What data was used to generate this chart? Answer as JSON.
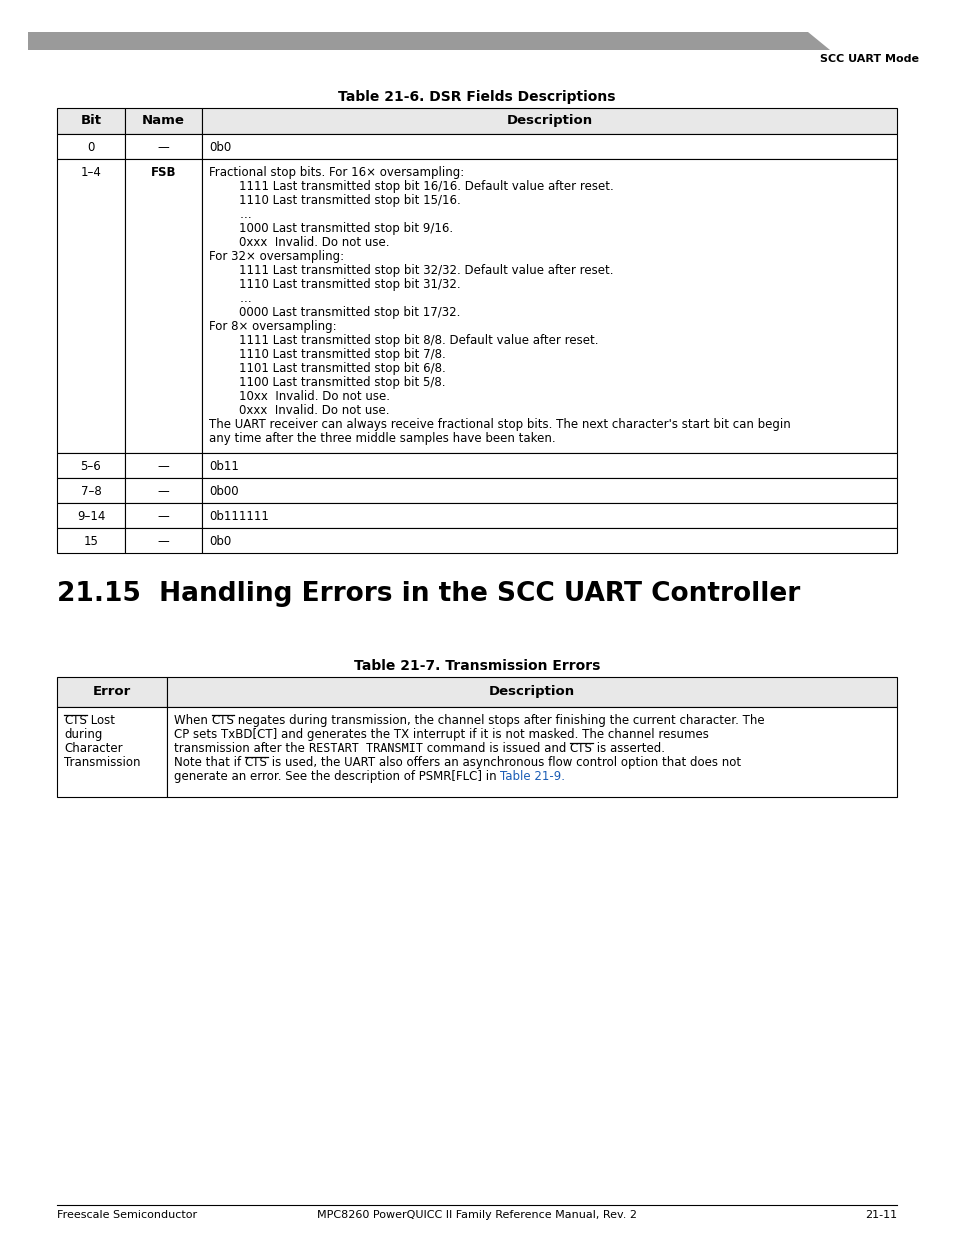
{
  "page_title_right": "SCC UART Mode",
  "table1_title": "Table 21-6. DSR Fields Descriptions",
  "table2_title": "Table 21-7. Transmission Errors",
  "section_title": "21.15  Handling Errors in the SCC UART Controller",
  "footer_left": "Freescale Semiconductor",
  "footer_right": "21-11",
  "footer_center": "MPC8260 PowerQUICC II Family Reference Manual, Rev. 2",
  "bg_color": "#ffffff",
  "header_bg": "#e8e8e8",
  "body_font_size": 8.5,
  "header_font_size": 9.5,
  "title_font_size": 10,
  "section_font_size": 19
}
